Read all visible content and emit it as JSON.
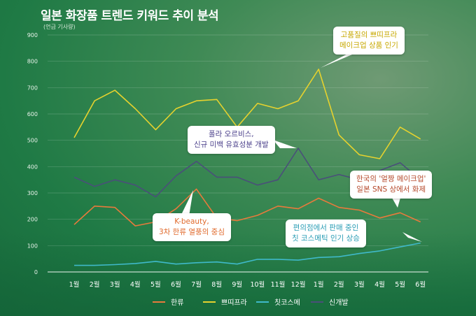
{
  "colors": {
    "hallyu": "#e87a3c",
    "ppeuppeura": "#e6d22e",
    "chitcos": "#3fb9c9",
    "newdev": "#4a4f7a"
  },
  "chart_data": {
    "type": "line",
    "title": "일본 화장품 트렌드 키워드 추이 분석",
    "unit_note": "(언급 기사량)",
    "categories": [
      "1월",
      "2월",
      "3월",
      "4월",
      "5월",
      "6월",
      "7월",
      "8월",
      "9월",
      "10월",
      "11월",
      "12월",
      "1월",
      "2월",
      "3월",
      "4월",
      "5월",
      "6월"
    ],
    "ylim": [
      0,
      900
    ],
    "yticks": [
      0,
      100,
      200,
      300,
      400,
      500,
      600,
      700,
      800,
      900
    ],
    "series": [
      {
        "name": "한류",
        "color_key": "hallyu",
        "values": [
          180,
          250,
          245,
          175,
          190,
          240,
          315,
          205,
          195,
          215,
          250,
          240,
          280,
          245,
          235,
          205,
          225,
          190
        ]
      },
      {
        "name": "쁘띠프라",
        "color_key": "ppeuppeura",
        "values": [
          510,
          650,
          690,
          620,
          540,
          620,
          650,
          655,
          550,
          640,
          620,
          650,
          770,
          520,
          445,
          430,
          550,
          505
        ]
      },
      {
        "name": "칫코스메",
        "color_key": "chitcos",
        "values": [
          25,
          25,
          28,
          32,
          40,
          30,
          35,
          38,
          30,
          48,
          48,
          45,
          55,
          58,
          70,
          80,
          95,
          110
        ]
      },
      {
        "name": "신개발",
        "color_key": "newdev",
        "values": [
          360,
          325,
          350,
          330,
          285,
          365,
          420,
          360,
          360,
          330,
          350,
          470,
          350,
          370,
          350,
          385,
          415,
          350
        ]
      }
    ],
    "annotations": [
      {
        "lines": [
          "고품질의 쁘띠프라",
          "메이크업 상품 인기"
        ]
      },
      {
        "lines": [
          "폴라 오르비스,",
          "신규 미백 유효성분 개발"
        ]
      },
      {
        "lines": [
          "한국의 '얼짱 메이크업'",
          "일본 SNS 상에서 화제"
        ]
      },
      {
        "lines": [
          "K-beauty,",
          "3차 한류 열풍의 중심"
        ]
      },
      {
        "lines": [
          "편의점에서 판매 중인",
          "칫 코스메틱 인기 상승"
        ]
      }
    ]
  }
}
